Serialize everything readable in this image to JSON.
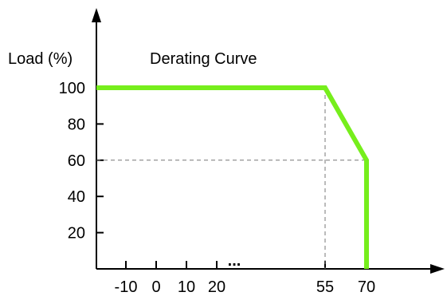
{
  "chart_data": {
    "type": "line",
    "title": "Derating Curve",
    "xlabel": "",
    "ylabel": "Load (%)",
    "x_ticks": [
      "-10",
      "0",
      "10",
      "20",
      "55",
      "70"
    ],
    "x_ellipsis": "...",
    "y_ticks": [
      "20",
      "40",
      "60",
      "80",
      "100"
    ],
    "series": [
      {
        "points": [
          {
            "x": -20,
            "y": 100
          },
          {
            "x": 55,
            "y": 100
          },
          {
            "x": 70,
            "y": 60
          },
          {
            "x": 70,
            "y": 0
          }
        ]
      }
    ],
    "reference_lines": [
      {
        "x": 55,
        "y": 100
      },
      {
        "x": 70,
        "y": 60
      }
    ],
    "colors": {
      "curve": "#76ee1c",
      "axis": "#000000",
      "reference": "#777777"
    },
    "grid": false
  }
}
